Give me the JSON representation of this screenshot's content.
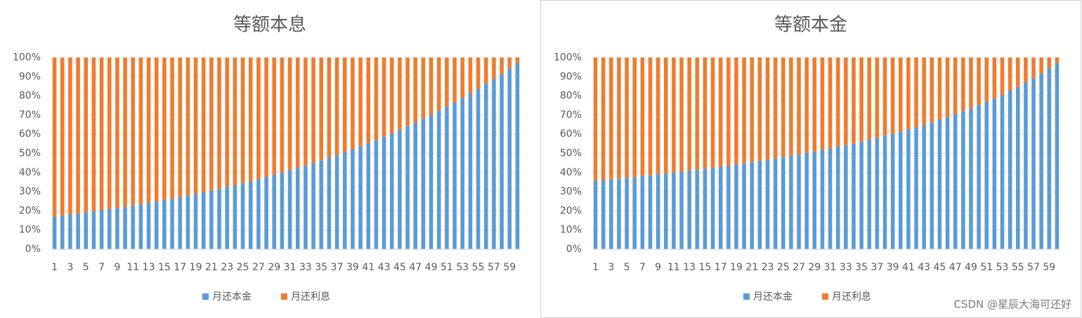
{
  "chart_data": [
    {
      "type": "bar",
      "stacked": true,
      "title": "等额本息",
      "categories": [
        1,
        null,
        3,
        null,
        5,
        null,
        7,
        null,
        9,
        null,
        11,
        null,
        13,
        null,
        15,
        null,
        17,
        null,
        19,
        null,
        21,
        null,
        23,
        null,
        25,
        null,
        27,
        null,
        29,
        null,
        31,
        null,
        33,
        null,
        35,
        null,
        37,
        null,
        39,
        null,
        41,
        null,
        43,
        null,
        45,
        null,
        47,
        null,
        49,
        null,
        51,
        null,
        53,
        null,
        55,
        null,
        57,
        null,
        59,
        null
      ],
      "series": [
        {
          "name": "月还本金",
          "color": "#5b9bd5",
          "values": [
            17.0,
            17.5,
            18.0,
            18.5,
            19.1,
            19.7,
            20.3,
            20.9,
            21.5,
            22.1,
            22.8,
            23.5,
            24.2,
            24.9,
            25.7,
            26.4,
            27.2,
            28.1,
            28.9,
            29.8,
            30.7,
            31.6,
            32.5,
            33.5,
            34.5,
            35.5,
            36.6,
            37.7,
            38.8,
            40.0,
            41.2,
            42.4,
            43.7,
            45.0,
            46.4,
            47.8,
            49.2,
            50.7,
            52.2,
            53.8,
            55.4,
            57.0,
            58.7,
            60.5,
            62.3,
            64.2,
            66.1,
            68.1,
            70.1,
            72.2,
            74.4,
            76.6,
            78.9,
            81.3,
            83.7,
            86.3,
            88.8,
            91.5,
            94.3,
            97.1
          ]
        },
        {
          "name": "月还利息",
          "color": "#ed7d31",
          "values": [
            83.0,
            82.5,
            82.0,
            81.5,
            80.9,
            80.3,
            79.7,
            79.1,
            78.5,
            77.9,
            77.2,
            76.5,
            75.8,
            75.1,
            74.3,
            73.6,
            72.8,
            71.9,
            71.1,
            70.2,
            69.3,
            68.4,
            67.5,
            66.5,
            65.5,
            64.5,
            63.4,
            62.3,
            61.2,
            60.0,
            58.8,
            57.6,
            56.3,
            55.0,
            53.6,
            52.2,
            50.8,
            49.3,
            47.8,
            46.2,
            44.6,
            43.0,
            41.3,
            39.5,
            37.7,
            35.8,
            33.9,
            31.9,
            29.9,
            27.8,
            25.6,
            23.4,
            21.1,
            18.7,
            16.3,
            13.7,
            11.2,
            8.5,
            5.7,
            2.9
          ]
        }
      ],
      "ylim": [
        0,
        100
      ],
      "yticks": [
        {
          "value": 0,
          "label": "0%"
        },
        {
          "value": 10,
          "label": "10%"
        },
        {
          "value": 20,
          "label": "20%"
        },
        {
          "value": 30,
          "label": "30%"
        },
        {
          "value": 40,
          "label": "40%"
        },
        {
          "value": 50,
          "label": "50%"
        },
        {
          "value": 60,
          "label": "60%"
        },
        {
          "value": 70,
          "label": "70%"
        },
        {
          "value": 80,
          "label": "80%"
        },
        {
          "value": 90,
          "label": "90%"
        },
        {
          "value": 100,
          "label": "100%"
        }
      ],
      "grid": true,
      "legend": "bottom"
    },
    {
      "type": "bar",
      "stacked": true,
      "title": "等额本金",
      "categories": [
        1,
        null,
        3,
        null,
        5,
        null,
        7,
        null,
        9,
        null,
        11,
        null,
        13,
        null,
        15,
        null,
        17,
        null,
        19,
        null,
        21,
        null,
        23,
        null,
        25,
        null,
        27,
        null,
        29,
        null,
        31,
        null,
        33,
        null,
        35,
        null,
        37,
        null,
        39,
        null,
        41,
        null,
        43,
        null,
        45,
        null,
        47,
        null,
        49,
        null,
        51,
        null,
        53,
        null,
        55,
        null,
        57,
        null,
        59,
        null
      ],
      "series": [
        {
          "name": "月还本金",
          "color": "#5b9bd5",
          "values": [
            35.7,
            36.1,
            36.5,
            36.9,
            37.3,
            37.7,
            38.2,
            38.6,
            39.1,
            39.5,
            40.0,
            40.5,
            41.0,
            41.5,
            42.0,
            42.6,
            43.1,
            43.7,
            44.2,
            44.8,
            45.5,
            46.1,
            46.7,
            47.4,
            48.1,
            48.8,
            49.5,
            50.3,
            51.0,
            51.8,
            52.6,
            53.5,
            54.3,
            55.2,
            56.2,
            57.1,
            58.1,
            59.2,
            60.2,
            61.3,
            62.5,
            63.7,
            64.9,
            66.2,
            67.6,
            69.0,
            70.4,
            71.9,
            73.5,
            75.2,
            76.9,
            78.7,
            80.6,
            82.6,
            84.7,
            87.0,
            89.3,
            91.7,
            94.3,
            97.1
          ]
        },
        {
          "name": "月还利息",
          "color": "#ed7d31",
          "values": [
            64.3,
            63.9,
            63.5,
            63.1,
            62.7,
            62.3,
            61.8,
            61.4,
            60.9,
            60.5,
            60.0,
            59.5,
            59.0,
            58.5,
            58.0,
            57.4,
            56.9,
            56.3,
            55.8,
            55.2,
            54.5,
            53.9,
            53.3,
            52.6,
            51.9,
            51.2,
            50.5,
            49.7,
            49.0,
            48.2,
            47.4,
            46.5,
            45.7,
            44.8,
            43.8,
            42.9,
            41.9,
            40.8,
            39.8,
            38.7,
            37.5,
            36.3,
            35.1,
            33.8,
            32.4,
            31.0,
            29.6,
            28.1,
            26.5,
            24.8,
            23.1,
            21.3,
            19.4,
            17.4,
            15.3,
            13.0,
            10.7,
            8.3,
            5.7,
            2.9
          ]
        }
      ],
      "ylim": [
        0,
        100
      ],
      "yticks": [
        {
          "value": 0,
          "label": "0%"
        },
        {
          "value": 10,
          "label": "10%"
        },
        {
          "value": 20,
          "label": "20%"
        },
        {
          "value": 30,
          "label": "30%"
        },
        {
          "value": 40,
          "label": "40%"
        },
        {
          "value": 50,
          "label": "50%"
        },
        {
          "value": 60,
          "label": "60%"
        },
        {
          "value": 70,
          "label": "70%"
        },
        {
          "value": 80,
          "label": "80%"
        },
        {
          "value": 90,
          "label": "90%"
        },
        {
          "value": 100,
          "label": "100%"
        }
      ],
      "grid": true,
      "legend": "bottom"
    }
  ],
  "watermark": "CSDN @星辰大海可还好"
}
